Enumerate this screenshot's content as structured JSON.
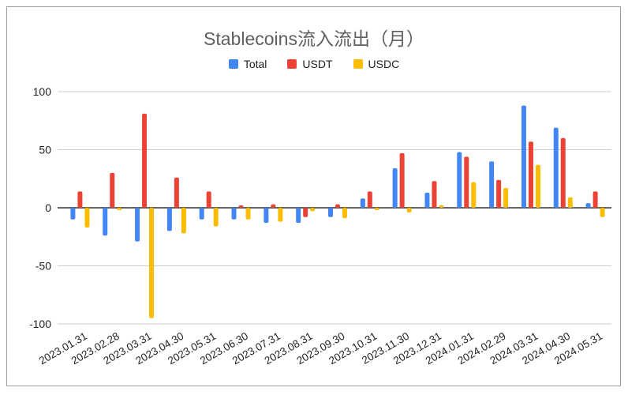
{
  "chart_data": {
    "type": "bar",
    "title": "Stablecoins流入流出（月）",
    "categories": [
      "2023.01.31",
      "2023.02.28",
      "2023.03.31",
      "2023.04.30",
      "2023.05.31",
      "2023.06.30",
      "2023.07.31",
      "2023.08.31",
      "2023.09.30",
      "2023.10.31",
      "2023.11.30",
      "2023.12.31",
      "2024.01.31",
      "2024.02.29",
      "2024.03.31",
      "2024.04.30",
      "2024.05.31"
    ],
    "series": [
      {
        "name": "Total",
        "color": "#4285f4",
        "values": [
          -10,
          -24,
          -29,
          -20,
          -10,
          -10,
          -13,
          -13,
          -8,
          8,
          34,
          13,
          48,
          40,
          88,
          69,
          4
        ]
      },
      {
        "name": "USDT",
        "color": "#ea4335",
        "values": [
          14,
          30,
          81,
          26,
          14,
          2,
          3,
          -8,
          3,
          14,
          47,
          23,
          44,
          24,
          57,
          60,
          14
        ]
      },
      {
        "name": "USDC",
        "color": "#fbbc04",
        "values": [
          -17,
          -2,
          -95,
          -22,
          -16,
          -10,
          -12,
          -3,
          -9,
          -2,
          -4,
          2,
          22,
          17,
          37,
          9,
          -8
        ]
      }
    ],
    "ylim": [
      -100,
      100
    ],
    "yticks": [
      "100",
      "50",
      "0",
      "-50",
      "-100"
    ],
    "grid": true,
    "legend": "top"
  }
}
